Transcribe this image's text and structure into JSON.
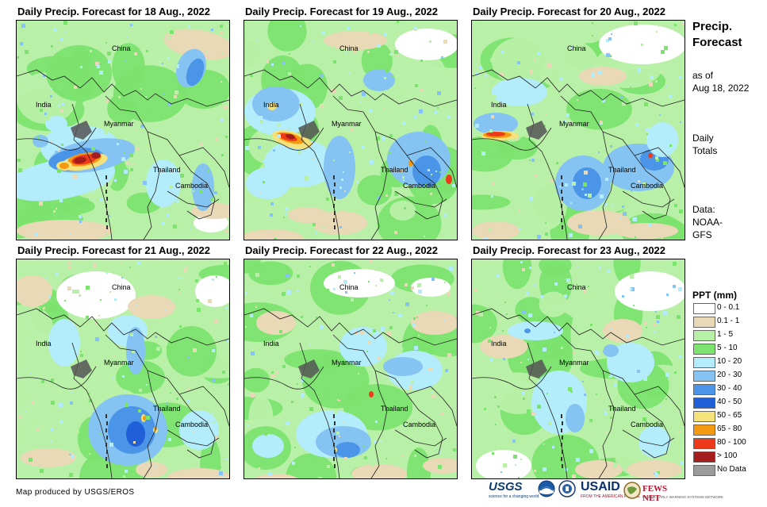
{
  "panels": [
    {
      "title": "Daily Precip. Forecast for 18 Aug., 2022",
      "labels": {
        "china": "China",
        "india": "India",
        "myanmar": "Myanmar",
        "thailand": "Thailand",
        "cambodia": "Cambodia"
      }
    },
    {
      "title": "Daily Precip. Forecast for 19 Aug., 2022",
      "labels": {
        "china": "China",
        "india": "India",
        "myanmar": "Myanmar",
        "thailand": "Thailand",
        "cambodia": "Cambodia"
      }
    },
    {
      "title": "Daily Precip. Forecast for 20 Aug., 2022",
      "labels": {
        "china": "China",
        "india": "India",
        "myanmar": "Myanmar",
        "thailand": "Thailand",
        "cambodia": "Cambodia"
      }
    },
    {
      "title": "Daily Precip. Forecast for 21 Aug., 2022",
      "labels": {
        "china": "China",
        "india": "India",
        "myanmar": "Myanmar",
        "thailand": "Thailand",
        "cambodia": "Cambodia"
      }
    },
    {
      "title": "Daily Precip. Forecast for 22 Aug., 2022",
      "labels": {
        "china": "China",
        "india": "India",
        "myanmar": "Myanmar",
        "thailand": "Thailand",
        "cambodia": "Cambodia"
      }
    },
    {
      "title": "Daily Precip. Forecast for 23 Aug., 2022",
      "labels": {
        "china": "China",
        "india": "India",
        "myanmar": "Myanmar",
        "thailand": "Thailand",
        "cambodia": "Cambodia"
      }
    }
  ],
  "side": {
    "title_line1": "Precip.",
    "title_line2": "Forecast",
    "asof_line1": "as of",
    "asof_line2": "Aug 18, 2022",
    "totals_line1": "Daily",
    "totals_line2": "Totals",
    "data_line1": "Data:",
    "data_line2": "NOAA-",
    "data_line3": "GFS"
  },
  "legend": {
    "title": "PPT (mm)",
    "items": [
      {
        "label": "0 - 0.1",
        "color": "#ffffff"
      },
      {
        "label": "0.1 - 1",
        "color": "#e9d9b6"
      },
      {
        "label": "1 - 5",
        "color": "#b9f0a8"
      },
      {
        "label": "5 - 10",
        "color": "#7be36e"
      },
      {
        "label": "10 - 20",
        "color": "#b3ecfb"
      },
      {
        "label": "20 - 30",
        "color": "#84c3f2"
      },
      {
        "label": "30 - 40",
        "color": "#4b95e8"
      },
      {
        "label": "40 - 50",
        "color": "#1f5fd8"
      },
      {
        "label": "50 - 65",
        "color": "#f6e27a"
      },
      {
        "label": "65 - 80",
        "color": "#f49a12"
      },
      {
        "label": "80 - 100",
        "color": "#ee3a1a"
      },
      {
        "label": "> 100",
        "color": "#a51c1c"
      },
      {
        "label": "No Data",
        "color": "#9b9b9b"
      }
    ]
  },
  "credit": "Map produced by USGS/EROS",
  "logos": {
    "usgs": "USGS",
    "usgs_tagline": "science for a changing world",
    "usaid": "USAID",
    "usaid_tagline": "FROM THE AMERICAN PEOPLE",
    "fews": "FEWS NET",
    "fews_tagline": "FAMINE EARLY WARNING SYSTEMS NETWORK"
  }
}
